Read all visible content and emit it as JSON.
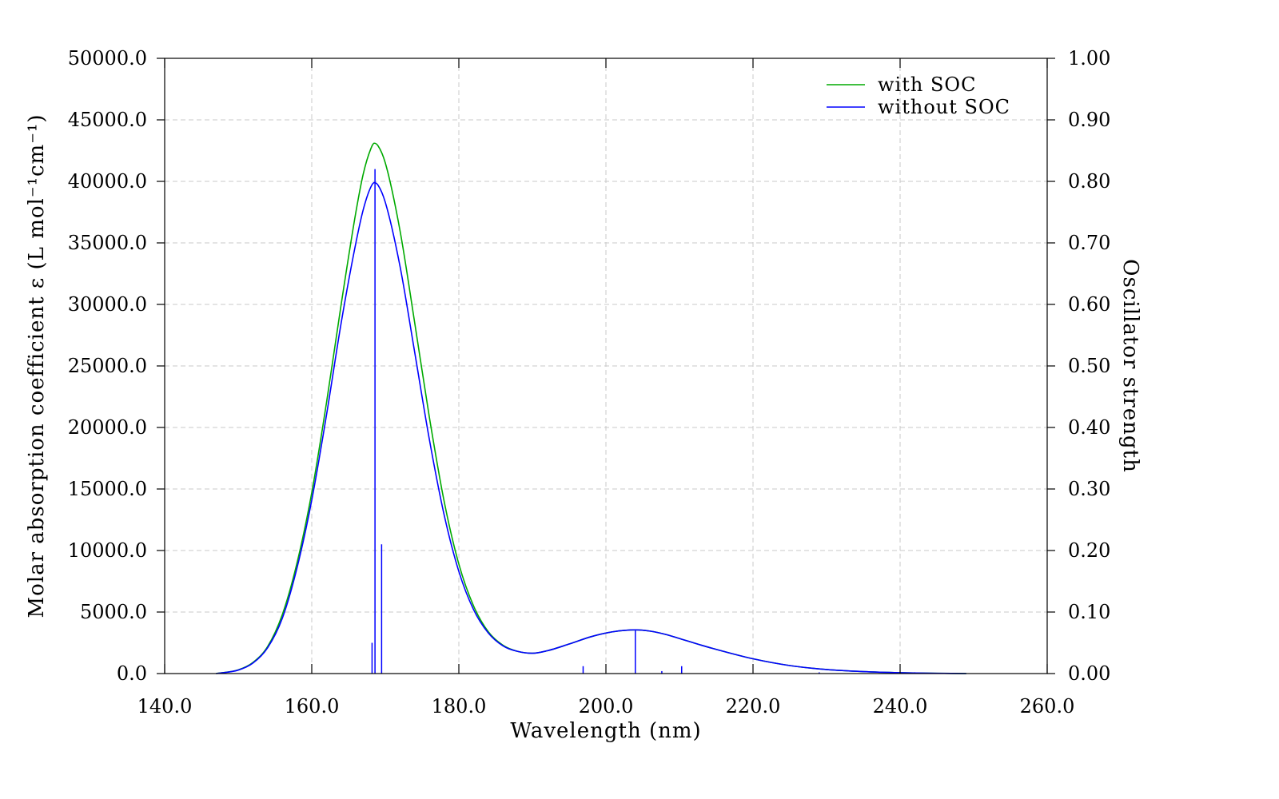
{
  "chart_data": {
    "type": "line",
    "xlabel": "Wavelength (nm)",
    "ylabel_left": "Molar absorption coefficient  ε (L mol⁻¹cm⁻¹)",
    "ylabel_right": "Oscillator strength",
    "xlim": [
      140.0,
      260.0
    ],
    "ylim_left": [
      0.0,
      50000.0
    ],
    "ylim_right": [
      0.0,
      1.0
    ],
    "x_ticks": [
      "140.0",
      "160.0",
      "180.0",
      "200.0",
      "220.0",
      "240.0",
      "260.0"
    ],
    "y_left_ticks": [
      "0.0",
      "5000.0",
      "10000.0",
      "15000.0",
      "20000.0",
      "25000.0",
      "30000.0",
      "35000.0",
      "40000.0",
      "45000.0",
      "50000.0"
    ],
    "y_right_ticks": [
      "0.00",
      "0.10",
      "0.20",
      "0.30",
      "0.40",
      "0.50",
      "0.60",
      "0.70",
      "0.80",
      "0.90",
      "1.00"
    ],
    "grid": true,
    "legend_position": "top-right",
    "legend": [
      "with SOC",
      "without SOC"
    ],
    "colors": {
      "with_soc": "#00aa00",
      "without_soc": "#0000ff",
      "grid": "#c8c8c8"
    },
    "series": [
      {
        "name": "with SOC",
        "x": [
          147,
          150,
          152,
          154,
          156,
          158,
          160,
          162,
          164,
          166,
          167,
          168,
          168.5,
          169,
          170,
          172,
          174,
          176,
          178,
          180,
          182,
          184,
          186,
          188,
          190,
          192,
          195,
          198,
          201,
          204,
          206,
          208,
          210,
          213,
          216,
          220,
          225,
          230,
          235,
          240,
          245,
          249
        ],
        "y": [
          0,
          300,
          900,
          2200,
          4800,
          9000,
          14700,
          22000,
          30000,
          37500,
          40600,
          42600,
          43100,
          42900,
          41500,
          36000,
          28500,
          20800,
          14000,
          8900,
          5500,
          3400,
          2300,
          1800,
          1650,
          1850,
          2400,
          3000,
          3400,
          3550,
          3450,
          3200,
          2850,
          2300,
          1800,
          1200,
          650,
          330,
          160,
          70,
          25,
          0
        ]
      },
      {
        "name": "without SOC",
        "x": [
          147,
          150,
          152,
          154,
          156,
          158,
          160,
          162,
          164,
          166,
          167,
          168,
          168.5,
          169,
          170,
          172,
          174,
          176,
          178,
          180,
          182,
          184,
          186,
          188,
          190,
          192,
          195,
          198,
          201,
          204,
          206,
          208,
          210,
          213,
          216,
          220,
          225,
          230,
          235,
          240,
          245,
          249
        ],
        "y": [
          0,
          280,
          850,
          2100,
          4500,
          8600,
          14100,
          21000,
          28500,
          35000,
          37700,
          39500,
          39900,
          39700,
          38300,
          33100,
          26100,
          19000,
          12900,
          8300,
          5200,
          3300,
          2250,
          1800,
          1650,
          1850,
          2400,
          3000,
          3400,
          3550,
          3450,
          3200,
          2850,
          2300,
          1800,
          1200,
          650,
          330,
          160,
          70,
          25,
          0
        ]
      }
    ],
    "sticks": {
      "name": "oscillator strengths",
      "x": [
        168.2,
        168.6,
        169.5,
        196.9,
        204.0,
        207.6,
        210.3,
        229.0
      ],
      "f": [
        0.05,
        0.82,
        0.21,
        0.012,
        0.07,
        0.004,
        0.012,
        0.002
      ],
      "colors": [
        "#0000ff",
        "#0000ff",
        "#0000ff",
        "#0000ff",
        "#0000ff",
        "#0000ff",
        "#0000ff",
        "#0000ff"
      ]
    }
  }
}
